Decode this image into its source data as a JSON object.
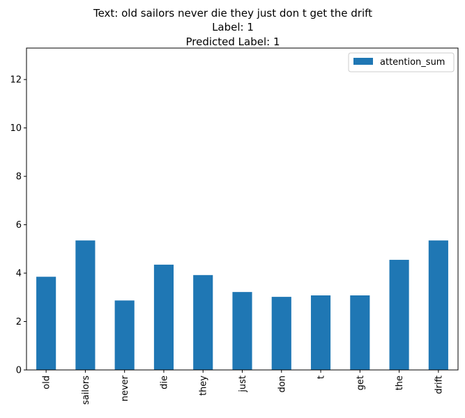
{
  "chart_data": {
    "type": "bar",
    "title_lines": [
      "Text: old sailors never die they just don t get the drift",
      "Label: 1",
      "Predicted Label: 1"
    ],
    "categories": [
      "old",
      "sailors",
      "never",
      "die",
      "they",
      "just",
      "don",
      "t",
      "get",
      "the",
      "drift"
    ],
    "series": [
      {
        "name": "attention_sum",
        "values": [
          3.85,
          5.35,
          2.87,
          4.35,
          3.92,
          3.22,
          3.02,
          3.08,
          3.08,
          4.55,
          5.35
        ],
        "color": "#1f77b4"
      }
    ],
    "yticks": [
      0,
      2,
      4,
      6,
      8,
      10,
      12
    ],
    "ylim": [
      0,
      13.3
    ],
    "xlabel": "",
    "ylabel": "",
    "grid": false,
    "legend_position": "top-right"
  }
}
